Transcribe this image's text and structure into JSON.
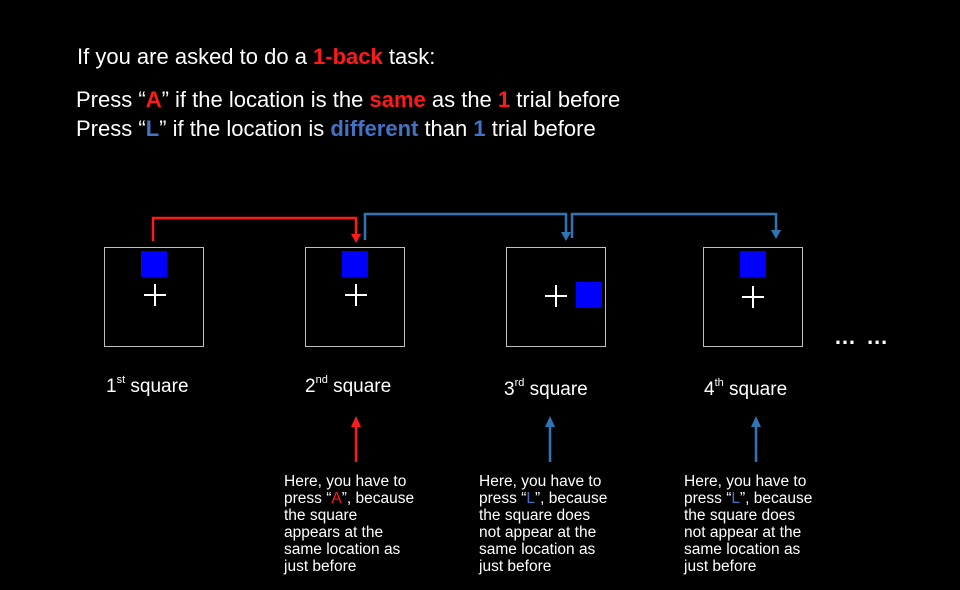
{
  "heading": {
    "prefix": "If you are asked to do a ",
    "task": "1-back",
    "suffix": " task:"
  },
  "rule_same": {
    "p1": "Press “",
    "key": "A",
    "p2": "” if the location is the ",
    "em": "same",
    "p3": " as the ",
    "n": "1",
    "p4": " trial before"
  },
  "rule_diff": {
    "p1": "Press “",
    "key": "L",
    "p2": "” if the location is ",
    "em": "different",
    "p3": " than ",
    "n": "1",
    "p4": " trial before"
  },
  "squares": [
    {
      "num": "1",
      "sup": "st",
      "word": "square"
    },
    {
      "num": "2",
      "sup": "nd",
      "word": "square"
    },
    {
      "num": "3",
      "sup": "rd",
      "word": "square"
    },
    {
      "num": "4",
      "sup": "th",
      "word": "square"
    }
  ],
  "ellipsis": "… …",
  "notes": [
    {
      "l1": "Here, you have to",
      "l2a": "press “",
      "key": "A",
      "l2b": "”, because",
      "l3": "the square",
      "l4": "appears at the",
      "l5": "same location as",
      "l6": "just before",
      "color": "#ff1a1a"
    },
    {
      "l1": "Here, you have to",
      "l2a": "press “",
      "key": "L",
      "l2b": "”, because",
      "l3": "the square does",
      "l4": "not appear at the",
      "l5": "same location as",
      "l6": "just before",
      "color": "#4472c4"
    },
    {
      "l1": "Here, you have to",
      "l2a": "press “",
      "key": "L",
      "l2b": "”, because",
      "l3": "the square does",
      "l4": "not appear at the",
      "l5": "same location as",
      "l6": "just before",
      "color": "#4472c4"
    }
  ],
  "colors": {
    "background": "#000000",
    "same_red": "#ff1a1a",
    "different_blue": "#4472c4",
    "target_square": "#0000ff",
    "frame": "#bfbfbf"
  }
}
